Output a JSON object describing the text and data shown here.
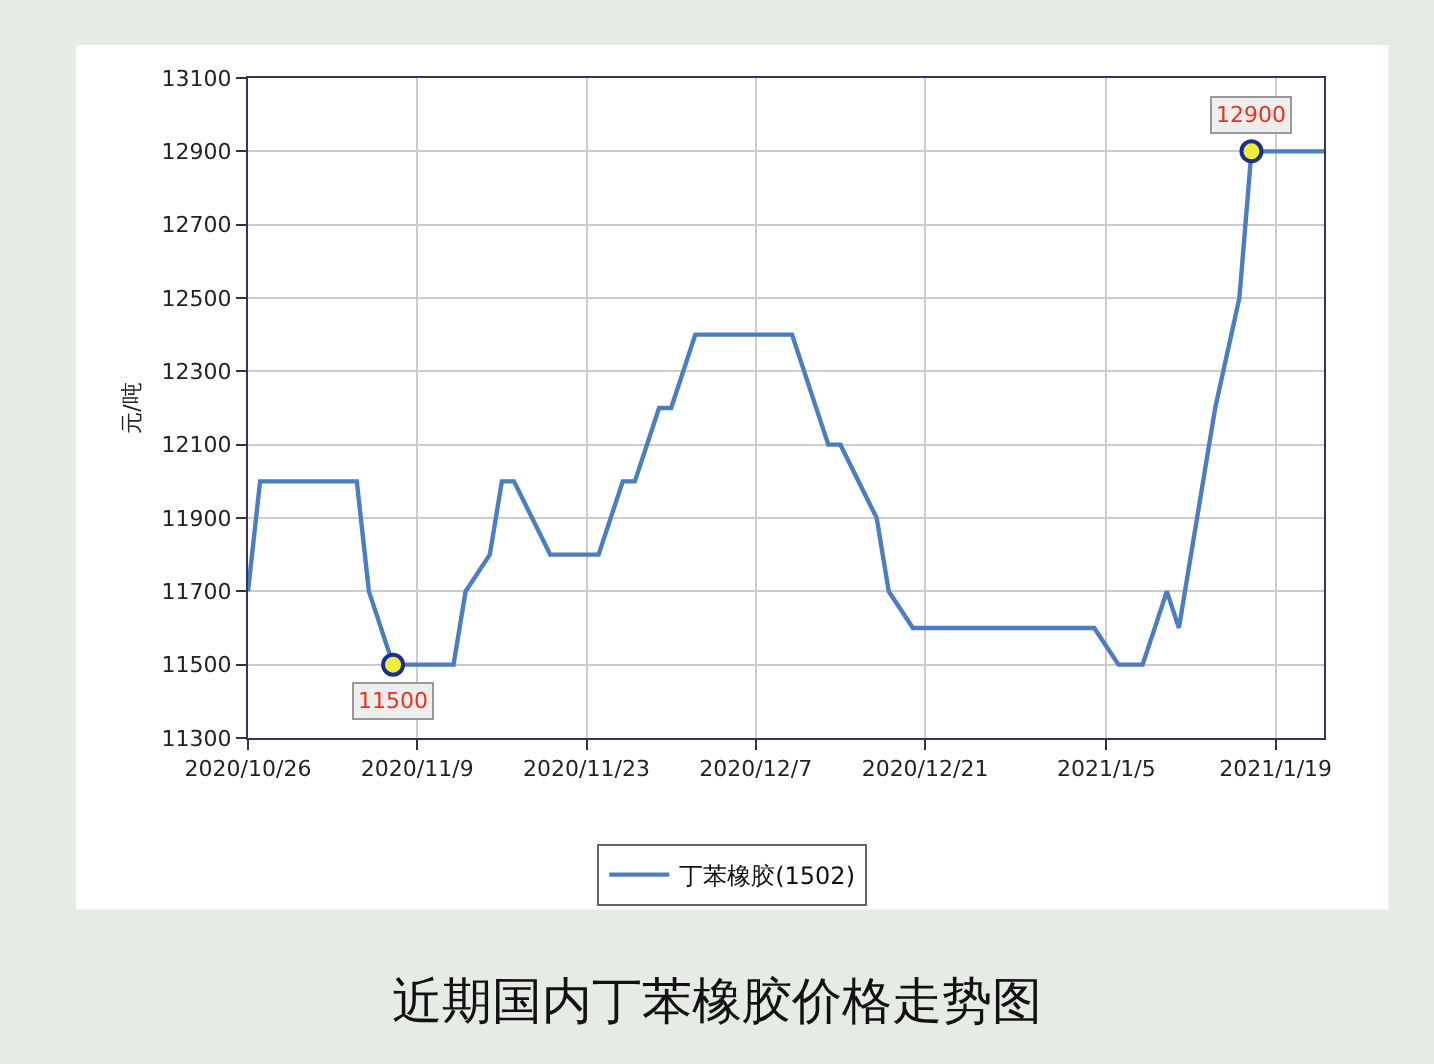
{
  "chart_data": {
    "type": "line",
    "title": "近期国内丁苯橡胶价格走势图",
    "ylabel": "元/吨",
    "x": [
      "2020-10-26",
      "2020-10-27",
      "2020-11-04",
      "2020-11-05",
      "2020-11-07",
      "2020-11-12",
      "2020-11-13",
      "2020-11-15",
      "2020-11-16",
      "2020-11-17",
      "2020-11-20",
      "2020-11-24",
      "2020-11-26",
      "2020-11-27",
      "2020-11-29",
      "2020-11-30",
      "2020-12-02",
      "2020-12-10",
      "2020-12-11",
      "2020-12-13",
      "2020-12-14",
      "2020-12-17",
      "2020-12-18",
      "2020-12-20",
      "2021-01-04",
      "2021-01-06",
      "2021-01-08",
      "2021-01-10",
      "2021-01-11",
      "2021-01-13",
      "2021-01-14",
      "2021-01-16",
      "2021-01-17",
      "2021-01-23"
    ],
    "series": [
      {
        "name": "丁苯橡胶(1502)",
        "color": "#4a7ebf",
        "values": [
          11700,
          12000,
          12000,
          11700,
          11500,
          11500,
          11700,
          11800,
          12000,
          12000,
          11800,
          11800,
          12000,
          12000,
          12200,
          12200,
          12400,
          12400,
          12300,
          12100,
          12100,
          11900,
          11700,
          11600,
          11600,
          11500,
          11500,
          11700,
          11600,
          12000,
          12200,
          12500,
          12900,
          12900
        ],
        "value_labels": [
          null,
          null,
          null,
          null,
          "11500",
          null,
          null,
          null,
          null,
          null,
          null,
          null,
          null,
          null,
          null,
          null,
          null,
          null,
          null,
          null,
          null,
          null,
          null,
          null,
          null,
          null,
          null,
          null,
          null,
          null,
          null,
          null,
          "12900",
          null
        ]
      }
    ],
    "xlim": [
      "2020-10-26",
      "2021-01-23"
    ],
    "xticks": [
      {
        "value": "2020-10-26",
        "label": "2020/10/26"
      },
      {
        "value": "2020-11-09",
        "label": "2020/11/9"
      },
      {
        "value": "2020-11-23",
        "label": "2020/11/23"
      },
      {
        "value": "2020-12-07",
        "label": "2020/12/7"
      },
      {
        "value": "2020-12-21",
        "label": "2020/12/21"
      },
      {
        "value": "2021-01-05",
        "label": "2021/1/5"
      },
      {
        "value": "2021-01-19",
        "label": "2021/1/19"
      }
    ],
    "ylim": [
      11300,
      13100
    ],
    "yticks": [
      11300,
      11500,
      11700,
      11900,
      12100,
      12300,
      12500,
      12700,
      12900,
      13100
    ],
    "grid": true,
    "legend": "bottom",
    "marker": "none",
    "line_style": "solid"
  }
}
